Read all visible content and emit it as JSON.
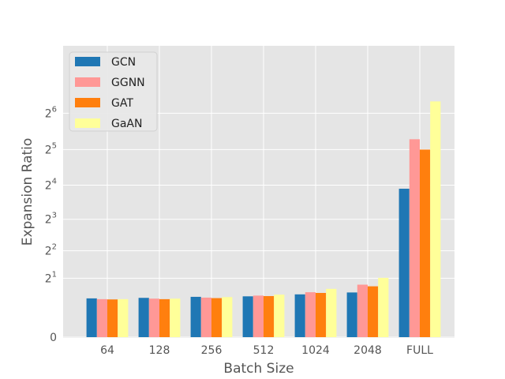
{
  "chart_data": {
    "type": "bar",
    "xlabel": "Batch Size",
    "ylabel": "Expansion Ratio",
    "y_scale": "log2",
    "ylim": [
      0,
      100
    ],
    "yticks": [
      {
        "value": 0,
        "base": "0",
        "exp": ""
      },
      {
        "value": 2,
        "base": "2",
        "exp": "1"
      },
      {
        "value": 4,
        "base": "2",
        "exp": "2"
      },
      {
        "value": 8,
        "base": "2",
        "exp": "3"
      },
      {
        "value": 16,
        "base": "2",
        "exp": "4"
      },
      {
        "value": 32,
        "base": "2",
        "exp": "5"
      },
      {
        "value": 64,
        "base": "2",
        "exp": "6"
      }
    ],
    "categories": [
      "64",
      "128",
      "256",
      "512",
      "1024",
      "2048",
      "FULL"
    ],
    "series": [
      {
        "name": "GCN",
        "color": "#1f77b4",
        "values": [
          1.06,
          1.08,
          1.12,
          1.14,
          1.22,
          1.3,
          14.9
        ]
      },
      {
        "name": "GGNN",
        "color": "#ff9896",
        "values": [
          1.03,
          1.05,
          1.09,
          1.17,
          1.31,
          1.66,
          39.0
        ]
      },
      {
        "name": "GAT",
        "color": "#ff7f0e",
        "values": [
          1.02,
          1.03,
          1.07,
          1.15,
          1.28,
          1.58,
          32.0
        ]
      },
      {
        "name": "GaAN",
        "color": "#ffff99",
        "values": [
          1.03,
          1.05,
          1.11,
          1.21,
          1.46,
          2.02,
          80.0
        ]
      }
    ],
    "legend": {
      "position": "upper left"
    },
    "grid": true,
    "background": "#e5e5e5",
    "gridline_color": "#ffffff"
  }
}
